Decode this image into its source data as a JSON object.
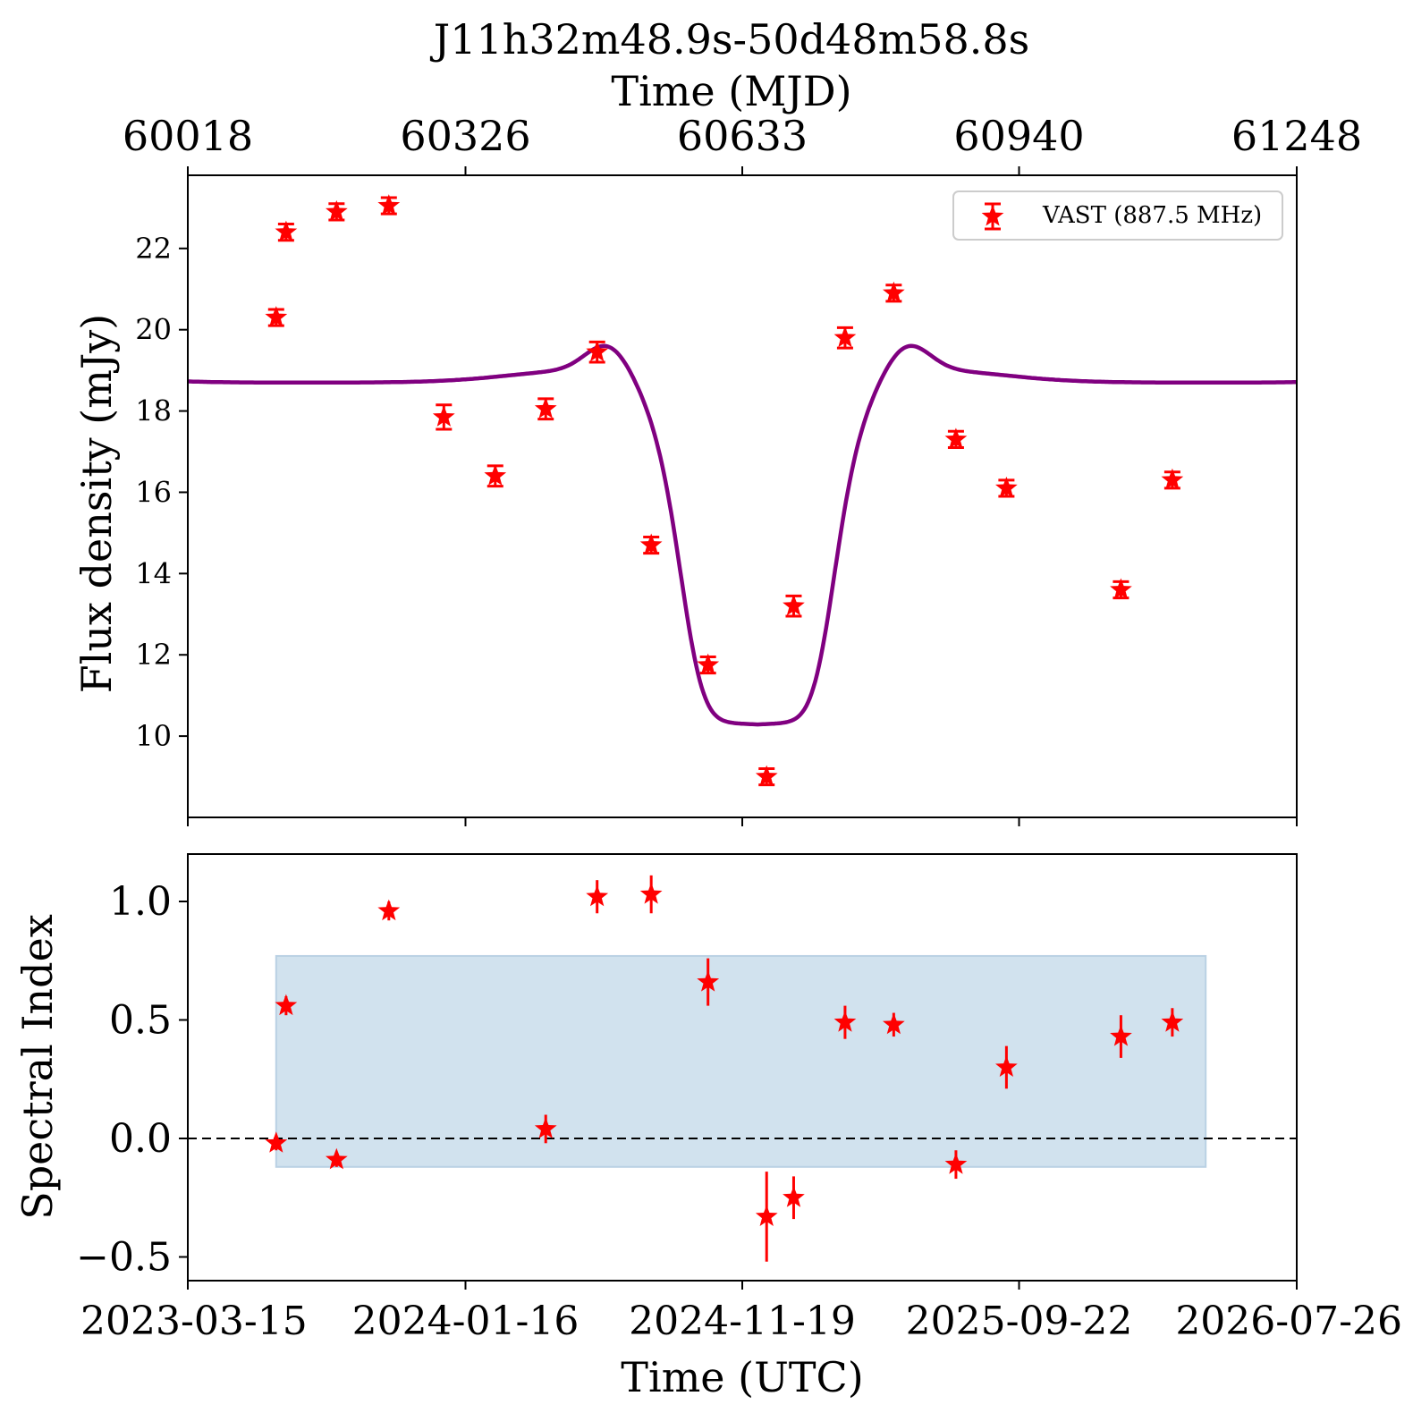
{
  "chart_data": [
    {
      "type": "scatter",
      "title": "J11h32m48.9s-50d48m58.8s",
      "top_axis_label": "Time (MJD)",
      "top_ticks": [
        "60018",
        "60326",
        "60633",
        "60940",
        "61248"
      ],
      "top_tick_values": [
        60018,
        60326,
        60633,
        60940,
        61248
      ],
      "ylabel": "Flux density (mJy)",
      "ylim": [
        8.0,
        23.8
      ],
      "yticks": [
        10,
        12,
        14,
        16,
        18,
        20,
        22
      ],
      "xlim_mjd": [
        60018,
        61248
      ],
      "legend": {
        "label": "VAST (887.5 MHz)",
        "placement": "top-right"
      },
      "series": [
        {
          "name": "VAST (887.5 MHz)",
          "color": "#ff0000",
          "marker": "star",
          "x_mjd": [
            60116,
            60127,
            60183,
            60241,
            60302,
            60359,
            60415,
            60472,
            60532,
            60595,
            60660,
            60690,
            60747,
            60801,
            60870,
            60926,
            61053,
            61110
          ],
          "y": [
            20.3,
            22.4,
            22.9,
            23.05,
            17.85,
            16.4,
            18.05,
            19.45,
            14.7,
            11.75,
            9.0,
            13.2,
            19.8,
            20.9,
            17.3,
            16.1,
            13.6,
            16.3
          ],
          "yerr": [
            0.2,
            0.2,
            0.2,
            0.2,
            0.3,
            0.25,
            0.25,
            0.25,
            0.2,
            0.2,
            0.2,
            0.25,
            0.25,
            0.2,
            0.2,
            0.2,
            0.2,
            0.2
          ]
        }
      ],
      "model_curve": {
        "color": "#800080",
        "baseline": 18.7,
        "minimum": 10.25,
        "dip_center_mjd": 60650,
        "dip_halfwidth_days": 90
      }
    },
    {
      "type": "scatter",
      "xlabel": "Time (UTC)",
      "ylabel": "Spectral Index",
      "ylim": [
        -0.6,
        1.2
      ],
      "yticks": [
        "1.0",
        "0.5",
        "0.0",
        "−0.5"
      ],
      "ytick_values": [
        1.0,
        0.5,
        0.0,
        -0.5
      ],
      "xticks": [
        "2023-03-15",
        "2024-01-16",
        "2024-11-19",
        "2025-09-22",
        "2026-07-26"
      ],
      "xtick_values_mjd": [
        60018,
        60326,
        60633,
        60940,
        61248
      ],
      "reference_line": 0.0,
      "shaded_band": {
        "x_mjd": [
          60116,
          61147
        ],
        "y": [
          -0.12,
          0.77
        ],
        "color": "#c6dbea"
      },
      "series": [
        {
          "color": "#ff0000",
          "marker": "star",
          "x_mjd": [
            60116,
            60127,
            60183,
            60241,
            60415,
            60472,
            60532,
            60595,
            60660,
            60690,
            60747,
            60801,
            60870,
            60926,
            61053,
            61110
          ],
          "y": [
            -0.02,
            0.56,
            -0.09,
            0.96,
            0.04,
            1.02,
            1.03,
            0.66,
            -0.33,
            -0.25,
            0.49,
            0.48,
            -0.11,
            0.3,
            0.43,
            0.49
          ],
          "yerr": [
            0.03,
            0.04,
            0.03,
            0.04,
            0.06,
            0.07,
            0.08,
            0.1,
            0.19,
            0.09,
            0.07,
            0.05,
            0.06,
            0.09,
            0.09,
            0.06
          ]
        }
      ]
    }
  ]
}
